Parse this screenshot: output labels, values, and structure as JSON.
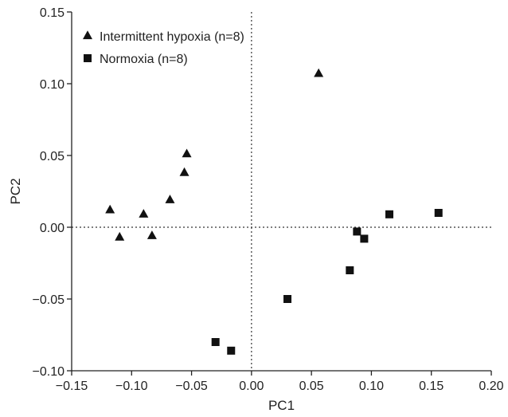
{
  "chart_data": {
    "type": "scatter",
    "title": "",
    "xlabel": "PC1",
    "ylabel": "PC2",
    "xlim": [
      -0.15,
      0.2
    ],
    "ylim": [
      -0.1,
      0.15
    ],
    "x_ticks": [
      -0.15,
      -0.1,
      -0.05,
      0.0,
      0.05,
      0.1,
      0.15,
      0.2
    ],
    "x_tick_labels": [
      "−0.15",
      "−0.10",
      "−0.05",
      "0.00",
      "0.05",
      "0.10",
      "0.15",
      "0.20"
    ],
    "y_ticks": [
      -0.1,
      -0.05,
      0.0,
      0.05,
      0.1,
      0.15
    ],
    "y_tick_labels": [
      "−0.10",
      "−0.05",
      "0.00",
      "0.05",
      "0.10",
      "0.15"
    ],
    "grid": false,
    "reference_lines": {
      "x": 0,
      "y": 0,
      "style": "dotted"
    },
    "legend_position": "top-left",
    "series": [
      {
        "name": "Intermittent hypoxia (n=8)",
        "marker": "triangle",
        "color": "#111111",
        "points": [
          {
            "x": -0.118,
            "y": 0.012
          },
          {
            "x": -0.11,
            "y": -0.007
          },
          {
            "x": -0.09,
            "y": 0.009
          },
          {
            "x": -0.083,
            "y": -0.006
          },
          {
            "x": -0.068,
            "y": 0.019
          },
          {
            "x": -0.056,
            "y": 0.038
          },
          {
            "x": -0.054,
            "y": 0.051
          },
          {
            "x": 0.056,
            "y": 0.107
          }
        ]
      },
      {
        "name": "Normoxia (n=8)",
        "marker": "square",
        "color": "#111111",
        "points": [
          {
            "x": -0.03,
            "y": -0.08
          },
          {
            "x": -0.017,
            "y": -0.086
          },
          {
            "x": 0.03,
            "y": -0.05
          },
          {
            "x": 0.082,
            "y": -0.03
          },
          {
            "x": 0.088,
            "y": -0.003
          },
          {
            "x": 0.094,
            "y": -0.008
          },
          {
            "x": 0.115,
            "y": 0.009
          },
          {
            "x": 0.156,
            "y": 0.01
          }
        ]
      }
    ]
  }
}
